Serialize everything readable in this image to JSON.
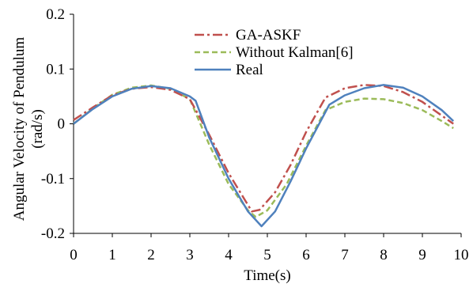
{
  "chart_data": {
    "type": "line",
    "xlabel": "Time(s)",
    "ylabel_lines": [
      "Angular Velocity of Pendulum",
      "(rad/s)"
    ],
    "xlim": [
      0,
      10
    ],
    "ylim": [
      -0.2,
      0.2
    ],
    "xticks": [
      0,
      1,
      2,
      3,
      4,
      5,
      6,
      7,
      8,
      9,
      10
    ],
    "yticks": [
      0.2,
      0.1,
      0,
      -0.1,
      -0.2
    ],
    "ytick_labels": [
      "0.2",
      "0.1",
      "0",
      "-0.1",
      "-0.2"
    ],
    "grid": false,
    "legend_position": "top-center",
    "series": [
      {
        "name": "GA-ASKF",
        "color": "#c0504d",
        "dash": "dashdot",
        "x": [
          0,
          0.5,
          1.0,
          1.5,
          2.0,
          2.5,
          3.0,
          3.5,
          4.0,
          4.6,
          4.8,
          5.2,
          5.6,
          6.0,
          6.5,
          7.0,
          7.5,
          8.0,
          8.5,
          9.0,
          9.5,
          9.8
        ],
        "y": [
          0.007,
          0.03,
          0.052,
          0.064,
          0.067,
          0.062,
          0.045,
          -0.02,
          -0.09,
          -0.16,
          -0.157,
          -0.125,
          -0.075,
          -0.015,
          0.048,
          0.065,
          0.071,
          0.069,
          0.058,
          0.04,
          0.015,
          0.0
        ]
      },
      {
        "name": "Without Kalman[6]",
        "color": "#9bbb59",
        "dash": "dashed",
        "x": [
          0,
          0.5,
          1.0,
          1.5,
          2.0,
          2.5,
          3.0,
          3.5,
          4.0,
          4.5,
          4.7,
          5.0,
          5.5,
          6.0,
          6.5,
          7.0,
          7.5,
          8.0,
          8.5,
          9.0,
          9.5,
          9.8
        ],
        "y": [
          0.0,
          0.028,
          0.053,
          0.066,
          0.07,
          0.064,
          0.045,
          -0.038,
          -0.11,
          -0.158,
          -0.17,
          -0.158,
          -0.11,
          -0.04,
          0.025,
          0.04,
          0.046,
          0.045,
          0.038,
          0.025,
          0.005,
          -0.008
        ]
      },
      {
        "name": "Real",
        "color": "#4f81bd",
        "dash": "solid",
        "x": [
          0,
          0.5,
          1.0,
          1.5,
          2.0,
          2.5,
          3.0,
          3.15,
          3.5,
          4.0,
          4.5,
          4.85,
          5.2,
          5.6,
          6.0,
          6.6,
          7.0,
          7.5,
          8.0,
          8.5,
          9.0,
          9.5,
          9.8
        ],
        "y": [
          0.0,
          0.027,
          0.05,
          0.064,
          0.069,
          0.065,
          0.05,
          0.042,
          -0.025,
          -0.1,
          -0.16,
          -0.187,
          -0.16,
          -0.105,
          -0.045,
          0.035,
          0.052,
          0.065,
          0.071,
          0.066,
          0.05,
          0.025,
          0.005
        ]
      }
    ]
  }
}
